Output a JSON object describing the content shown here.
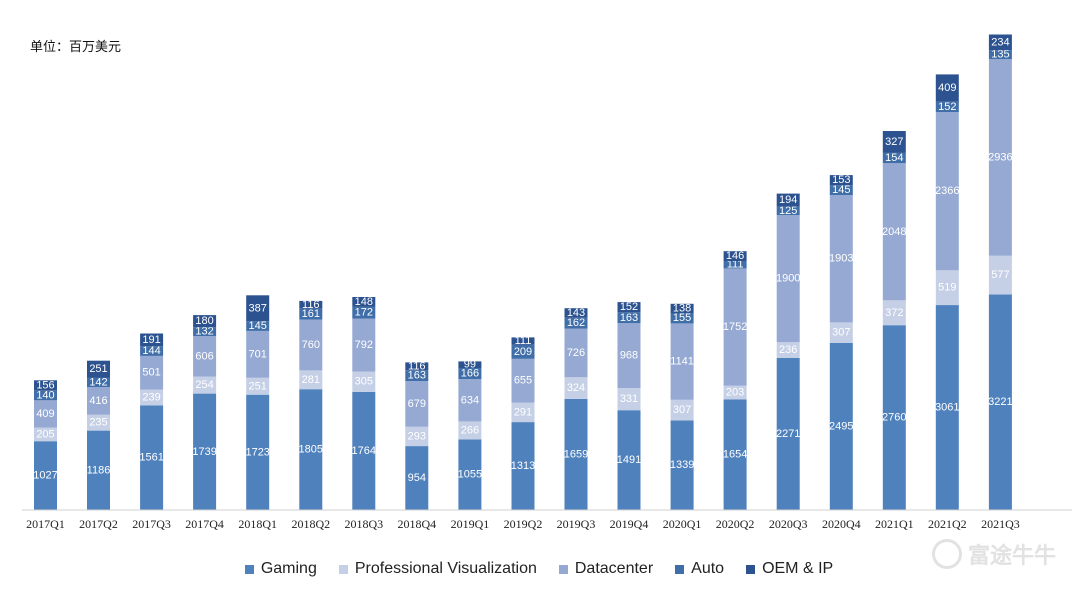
{
  "unit_label": "单位：百万美元",
  "watermark": "富途牛牛",
  "colors": {
    "Gaming": "#4f81bd",
    "Professional Visualization": "#c5d0e6",
    "Datacenter": "#95a9d3",
    "Auto": "#3f6ea8",
    "OEM & IP": "#2c528f"
  },
  "legend": [
    "Gaming",
    "Professional Visualization",
    "Datacenter",
    "Auto",
    "OEM & IP"
  ],
  "chart_data": {
    "type": "bar",
    "stacked": true,
    "categories": [
      "2017Q1",
      "2017Q2",
      "2017Q3",
      "2017Q4",
      "2018Q1",
      "2018Q2",
      "2018Q3",
      "2018Q4",
      "2019Q1",
      "2019Q2",
      "2019Q3",
      "2019Q4",
      "2020Q1",
      "2020Q2",
      "2020Q3",
      "2020Q4",
      "2021Q1",
      "2021Q2",
      "2021Q3"
    ],
    "series": [
      {
        "name": "Gaming",
        "values": [
          1027,
          1186,
          1561,
          1739,
          1723,
          1805,
          1764,
          954,
          1055,
          1313,
          1659,
          1491,
          1339,
          1654,
          2271,
          2495,
          2760,
          3061,
          3221
        ]
      },
      {
        "name": "Professional Visualization",
        "values": [
          205,
          235,
          239,
          254,
          251,
          281,
          305,
          293,
          266,
          291,
          324,
          331,
          307,
          203,
          236,
          307,
          372,
          519,
          577
        ]
      },
      {
        "name": "Datacenter",
        "values": [
          409,
          416,
          501,
          606,
          701,
          760,
          792,
          679,
          634,
          655,
          726,
          968,
          1141,
          1752,
          1900,
          1903,
          2048,
          2366,
          2936
        ]
      },
      {
        "name": "Auto",
        "values": [
          140,
          142,
          144,
          132,
          145,
          161,
          172,
          163,
          166,
          209,
          162,
          163,
          155,
          111,
          125,
          145,
          154,
          152,
          135
        ]
      },
      {
        "name": "OEM & IP",
        "values": [
          156,
          251,
          191,
          180,
          387,
          116,
          148,
          116,
          99,
          111,
          143,
          152,
          138,
          146,
          194,
          153,
          327,
          409,
          234
        ]
      }
    ],
    "legend_position": "bottom",
    "grid": false,
    "ylim": [
      0,
      7200
    ]
  }
}
